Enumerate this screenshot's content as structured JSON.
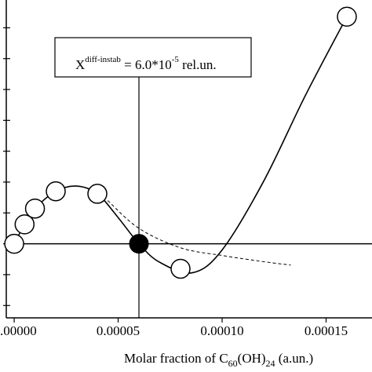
{
  "chart_data": {
    "type": "line",
    "xlim": [
      -3.8e-06,
      0.0001668
    ],
    "ylim": [
      -2.4,
      7.9
    ],
    "xticks": [
      {
        "value": 0,
        "label": ".00000"
      },
      5e-05,
      {
        "value": 0.0001,
        "label": "0.00010"
      },
      0.00015
    ],
    "yticks": [
      -2,
      -1,
      0,
      1,
      2,
      3,
      4,
      5,
      6,
      7
    ],
    "xlabel": {
      "text": "Molar fraction of C",
      "sub1": "60",
      "mid": "(OH)",
      "sub2": "24",
      "end": " (a.un.)"
    },
    "annotation": {
      "x": 6e-05,
      "base": "X",
      "sup1": "diff-instab",
      "mid": " = 6.0*10",
      "sup2": "-5",
      "end": " rel.un."
    },
    "zero_line": 0,
    "series": [
      {
        "color": "#000000",
        "dash": false,
        "x": [
          0,
          5e-06,
          1e-05,
          2e-05,
          3e-05,
          4e-05,
          5e-05,
          6e-05,
          7e-05,
          8.57e-05,
          0.0001,
          0.00012,
          0.00014,
          0.00016
        ],
        "values": [
          0,
          0.63,
          1.14,
          1.7,
          1.87,
          1.62,
          0.85,
          0,
          -0.6,
          -0.94,
          -0.2,
          2.03,
          4.8,
          7.36
        ]
      },
      {
        "color": "#000000",
        "dash": true,
        "x": [
          4.5e-05,
          6e-05,
          8e-05,
          0.0001,
          0.00012,
          0.000133
        ],
        "values": [
          1.4,
          0.5,
          -0.13,
          -0.38,
          -0.58,
          -0.69
        ]
      }
    ],
    "markers": {
      "x": [
        0,
        5e-06,
        1e-05,
        2e-05,
        4e-05,
        8e-05,
        0.00016
      ],
      "values": [
        0,
        0.63,
        1.14,
        1.7,
        1.62,
        -0.81,
        7.36
      ]
    },
    "marker_filled": {
      "x": 6e-05,
      "value": 0
    }
  }
}
